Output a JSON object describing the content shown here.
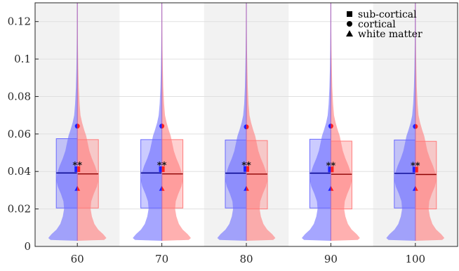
{
  "chart_data": {
    "type": "violin",
    "categories": [
      "60",
      "70",
      "80",
      "90",
      "100"
    ],
    "ylim": [
      0,
      0.13
    ],
    "yticks": [
      0,
      0.02,
      0.04,
      0.06,
      0.08,
      0.1,
      0.12
    ],
    "ytick_labels": [
      "0",
      "0.02",
      "0.04",
      "0.06",
      "0.08",
      "0.1",
      "0.12"
    ],
    "grid": true,
    "legend_position": "top-right",
    "colors": {
      "left": "#6b6bff",
      "right": "#ff7b7b",
      "band": "#f2f2f2"
    },
    "series": [
      {
        "side": "left",
        "color": "#6b6bff",
        "q1": [
          0.0205,
          0.0205,
          0.0205,
          0.0205,
          0.0205
        ],
        "q3": [
          0.0575,
          0.057,
          0.0568,
          0.0572,
          0.0568
        ],
        "median": [
          0.0392,
          0.0392,
          0.0391,
          0.0391,
          0.039
        ]
      },
      {
        "side": "right",
        "color": "#ff7b7b",
        "q1": [
          0.0205,
          0.0205,
          0.02,
          0.02,
          0.02
        ],
        "q3": [
          0.057,
          0.057,
          0.0565,
          0.0562,
          0.0561
        ],
        "median": [
          0.0387,
          0.0387,
          0.0386,
          0.0385,
          0.0384
        ]
      }
    ],
    "markers": {
      "sub_cortical": [
        0.0412,
        0.0412,
        0.0413,
        0.0411,
        0.041
      ],
      "cortical": [
        0.0642,
        0.0642,
        0.0638,
        0.0642,
        0.064
      ],
      "white_matter": [
        0.0308,
        0.0308,
        0.0308,
        0.0308,
        0.0308
      ]
    },
    "annotations": [
      "**",
      "**",
      "**",
      "**",
      "**"
    ],
    "legend": [
      {
        "marker": "square",
        "label": "sub-cortical"
      },
      {
        "marker": "circle",
        "label": "cortical"
      },
      {
        "marker": "triangle",
        "label": "white matter"
      }
    ]
  }
}
